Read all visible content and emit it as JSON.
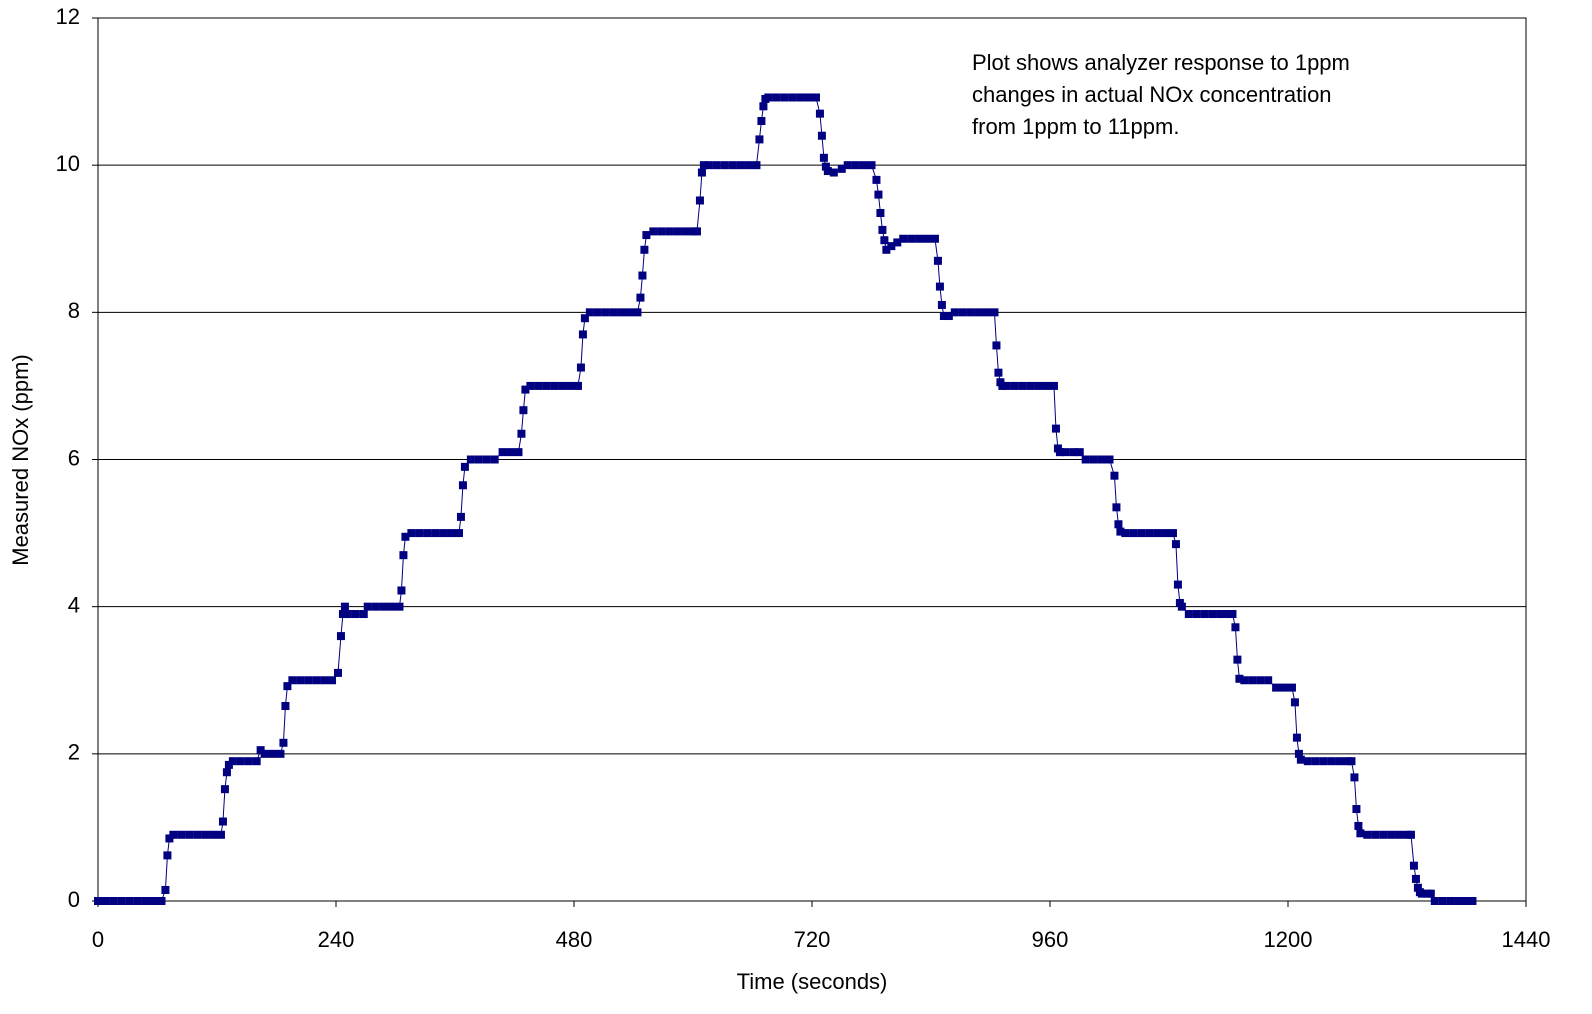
{
  "chart_data": {
    "type": "line",
    "annotation": [
      "Plot shows analyzer response to 1ppm",
      "changes in actual NOx concentration",
      "from 1ppm to 11ppm."
    ],
    "x_label": "Time (seconds)",
    "y_label": "Measured NOx (ppm)",
    "color": "#000080",
    "grid": true,
    "xlim": [
      0,
      1440
    ],
    "xticks": [
      0,
      240,
      480,
      720,
      960,
      1200,
      1440
    ],
    "ylim": [
      0,
      12
    ],
    "yticks": [
      0,
      2,
      4,
      6,
      8,
      10,
      12
    ],
    "x": [
      0,
      8,
      16,
      24,
      32,
      40,
      48,
      56,
      64,
      68,
      70,
      72,
      76,
      84,
      92,
      100,
      108,
      116,
      124,
      126,
      128,
      130,
      132,
      136,
      144,
      152,
      160,
      164,
      168,
      176,
      184,
      187,
      189,
      191,
      196,
      204,
      212,
      220,
      228,
      236,
      242,
      245,
      247,
      249,
      252,
      260,
      268,
      272,
      280,
      288,
      296,
      304,
      306,
      308,
      310,
      316,
      324,
      332,
      340,
      348,
      356,
      364,
      366,
      368,
      370,
      376,
      384,
      392,
      400,
      408,
      416,
      424,
      427,
      429,
      431,
      436,
      444,
      452,
      460,
      468,
      476,
      484,
      487,
      489,
      491,
      496,
      504,
      512,
      520,
      528,
      536,
      544,
      547,
      549,
      551,
      553,
      560,
      568,
      576,
      584,
      592,
      600,
      604,
      607,
      609,
      611,
      616,
      624,
      632,
      640,
      648,
      656,
      664,
      667,
      669,
      671,
      673,
      676,
      684,
      692,
      700,
      708,
      716,
      724,
      728,
      730,
      732,
      734,
      736,
      742,
      750,
      756,
      764,
      772,
      780,
      785,
      787,
      789,
      791,
      793,
      795,
      800,
      806,
      812,
      820,
      828,
      836,
      844,
      847,
      849,
      851,
      853,
      858,
      864,
      872,
      880,
      888,
      896,
      904,
      906,
      908,
      910,
      912,
      916,
      924,
      932,
      940,
      948,
      956,
      964,
      966,
      968,
      970,
      976,
      984,
      990,
      996,
      1004,
      1012,
      1020,
      1025,
      1027,
      1029,
      1031,
      1036,
      1044,
      1052,
      1060,
      1068,
      1076,
      1084,
      1087,
      1089,
      1091,
      1093,
      1100,
      1108,
      1116,
      1124,
      1132,
      1140,
      1144,
      1147,
      1149,
      1151,
      1156,
      1164,
      1172,
      1180,
      1188,
      1196,
      1204,
      1207,
      1209,
      1211,
      1213,
      1220,
      1228,
      1236,
      1244,
      1252,
      1260,
      1264,
      1267,
      1269,
      1271,
      1273,
      1280,
      1288,
      1296,
      1304,
      1312,
      1320,
      1324,
      1327,
      1329,
      1331,
      1333,
      1335,
      1340,
      1344,
      1348,
      1356,
      1364,
      1372,
      1380,
      1386
    ],
    "values": [
      0,
      0,
      0,
      0,
      0,
      0,
      0,
      0,
      0,
      0.15,
      0.62,
      0.85,
      0.9,
      0.9,
      0.9,
      0.9,
      0.9,
      0.9,
      0.9,
      1.08,
      1.52,
      1.75,
      1.85,
      1.9,
      1.9,
      1.9,
      1.9,
      2.05,
      2.0,
      2.0,
      2.0,
      2.15,
      2.65,
      2.92,
      3.0,
      3.0,
      3.0,
      3.0,
      3.0,
      3.0,
      3.1,
      3.6,
      3.9,
      4.0,
      3.9,
      3.9,
      3.9,
      4.0,
      4.0,
      4.0,
      4.0,
      4.0,
      4.22,
      4.7,
      4.95,
      5.0,
      5.0,
      5.0,
      5.0,
      5.0,
      5.0,
      5.0,
      5.22,
      5.65,
      5.9,
      6.0,
      6.0,
      6.0,
      6.0,
      6.1,
      6.1,
      6.1,
      6.35,
      6.67,
      6.95,
      7.0,
      7.0,
      7.0,
      7.0,
      7.0,
      7.0,
      7.0,
      7.25,
      7.7,
      7.92,
      8.0,
      8.0,
      8.0,
      8.0,
      8.0,
      8.0,
      8.0,
      8.2,
      8.5,
      8.85,
      9.05,
      9.1,
      9.1,
      9.1,
      9.1,
      9.1,
      9.1,
      9.1,
      9.52,
      9.9,
      10.0,
      10.0,
      10.0,
      10.0,
      10.0,
      10.0,
      10.0,
      10.0,
      10.35,
      10.6,
      10.8,
      10.9,
      10.92,
      10.92,
      10.92,
      10.92,
      10.92,
      10.92,
      10.92,
      10.7,
      10.4,
      10.1,
      9.98,
      9.92,
      9.9,
      9.95,
      10.0,
      10.0,
      10.0,
      10.0,
      9.8,
      9.6,
      9.35,
      9.12,
      8.98,
      8.85,
      8.9,
      8.95,
      9.0,
      9.0,
      9.0,
      9.0,
      9.0,
      8.7,
      8.35,
      8.1,
      7.95,
      7.95,
      8.0,
      8.0,
      8.0,
      8.0,
      8.0,
      8.0,
      7.55,
      7.18,
      7.05,
      7.0,
      7.0,
      7.0,
      7.0,
      7.0,
      7.0,
      7.0,
      7.0,
      6.42,
      6.15,
      6.1,
      6.1,
      6.1,
      6.1,
      6.0,
      6.0,
      6.0,
      6.0,
      5.78,
      5.35,
      5.12,
      5.02,
      5.0,
      5.0,
      5.0,
      5.0,
      5.0,
      5.0,
      5.0,
      4.85,
      4.3,
      4.05,
      4.0,
      3.9,
      3.9,
      3.9,
      3.9,
      3.9,
      3.9,
      3.9,
      3.72,
      3.28,
      3.02,
      3.0,
      3.0,
      3.0,
      3.0,
      2.9,
      2.9,
      2.9,
      2.7,
      2.22,
      2.0,
      1.92,
      1.9,
      1.9,
      1.9,
      1.9,
      1.9,
      1.9,
      1.9,
      1.68,
      1.25,
      1.02,
      0.92,
      0.9,
      0.9,
      0.9,
      0.9,
      0.9,
      0.9,
      0.9,
      0.48,
      0.3,
      0.18,
      0.12,
      0.1,
      0.1,
      0.1,
      0,
      0,
      0,
      0,
      0,
      0
    ]
  }
}
